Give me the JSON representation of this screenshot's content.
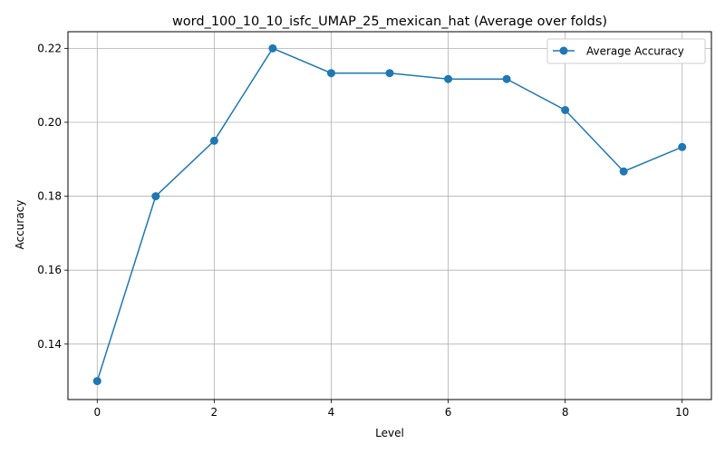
{
  "chart_data": {
    "type": "line",
    "title": "word_100_10_10_isfc_UMAP_25_mexican_hat (Average over folds)",
    "xlabel": "Level",
    "ylabel": "Accuracy",
    "xlim": [
      -0.5,
      10.5
    ],
    "ylim": [
      0.125,
      0.2245
    ],
    "xticks": [
      0,
      2,
      4,
      6,
      8,
      10
    ],
    "yticks": [
      0.14,
      0.16,
      0.18,
      0.2,
      0.22
    ],
    "ytick_labels": [
      "0.14",
      "0.16",
      "0.18",
      "0.20",
      "0.22"
    ],
    "grid": true,
    "legend_position": "upper right",
    "series": [
      {
        "name": "Average Accuracy",
        "color": "#1f77b4",
        "marker": "circle",
        "x": [
          0,
          1,
          2,
          3,
          4,
          5,
          6,
          7,
          8,
          9,
          10
        ],
        "y": [
          0.13,
          0.18,
          0.195,
          0.22,
          0.2133,
          0.2133,
          0.2117,
          0.2117,
          0.2033,
          0.1867,
          0.1933
        ]
      }
    ]
  }
}
